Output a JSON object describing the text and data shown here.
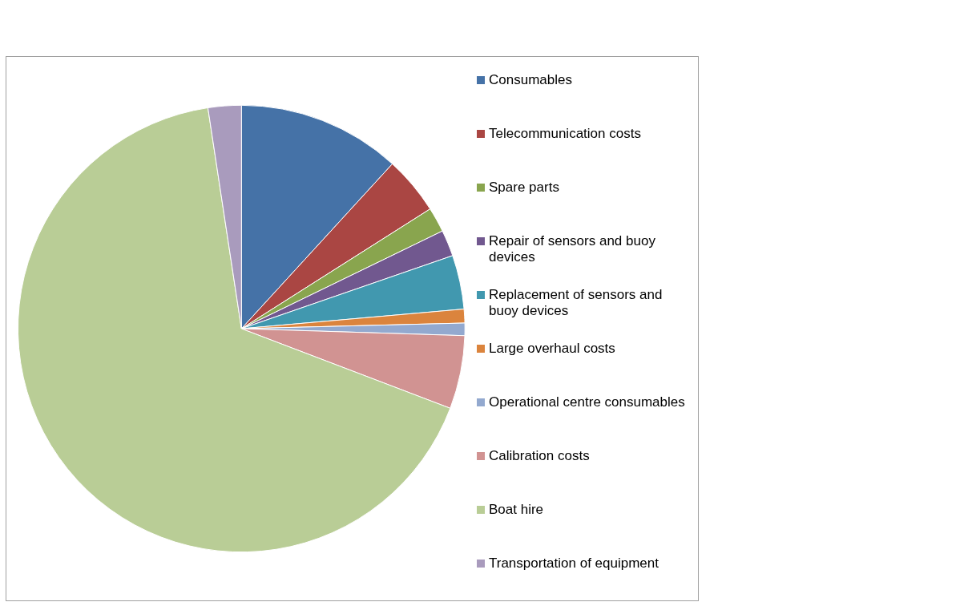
{
  "chart_data": {
    "type": "pie",
    "legend": "right",
    "categories": [
      "Consumables",
      "Telecommunication costs",
      "Spare parts",
      "Repair of sensors and buoy devices",
      "Replacement of sensors and buoy devices",
      "Large overhaul costs",
      "Operational centre consumables",
      "Calibration costs",
      "Boat hire",
      "Transportation of equipment"
    ],
    "values": [
      11.8,
      4.2,
      1.8,
      1.9,
      3.9,
      1.0,
      0.9,
      5.3,
      66.8,
      2.4
    ],
    "colors": [
      "#4572a7",
      "#aa4643",
      "#89a54e",
      "#71588f",
      "#4198af",
      "#db843d",
      "#93a9cf",
      "#d19392",
      "#b9cd96",
      "#a99bbd"
    ]
  }
}
